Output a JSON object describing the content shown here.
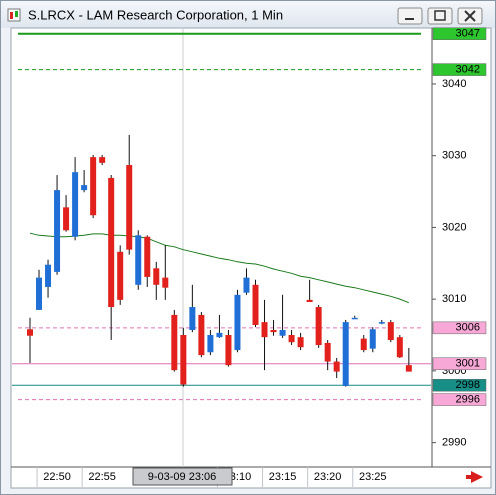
{
  "chart_data": {
    "type": "candlestick",
    "title": "S.LRCX - LAM Research Corporation, 1 Min",
    "categories": [
      null,
      null,
      null,
      "22:50",
      null,
      null,
      null,
      null,
      "22:55",
      null,
      null,
      null,
      null,
      null,
      null,
      null,
      null,
      null,
      null,
      null,
      null,
      null,
      null,
      "23:10",
      null,
      null,
      null,
      null,
      "23:15",
      null,
      null,
      null,
      null,
      "23:20",
      null,
      null,
      null,
      null,
      "23:25",
      null,
      null,
      null,
      null
    ],
    "open": [
      3005.8,
      3008.5,
      3011.7,
      3013.8,
      3022.8,
      3018.7,
      3025.2,
      3029.8,
      3029.8,
      3026.9,
      3016.6,
      3028.7,
      3012.0,
      3018.7,
      3014.3,
      3013.0,
      3007.8,
      3005.0,
      3005.7,
      3007.8,
      3002.6,
      3004.7,
      3005.0,
      3002.9,
      3010.9,
      3012.0,
      3006.8,
      3005.7,
      3004.9,
      3005.0,
      3004.7,
      3009.9,
      3008.9,
      3003.9,
      3001.3,
      2997.9,
      3007.4,
      3004.5,
      3003.1,
      3006.8,
      3006.8,
      3004.7,
      3000.8
    ],
    "high": [
      3007.4,
      3014.1,
      3015.5,
      3027.3,
      3024.5,
      3029.8,
      3028.0,
      3030.1,
      3030.1,
      3027.3,
      3017.5,
      3032.9,
      3019.6,
      3018.9,
      3015.2,
      3017.5,
      3008.5,
      3006.0,
      3012.0,
      3008.2,
      3005.7,
      3007.8,
      3005.7,
      3011.3,
      3014.3,
      3012.7,
      3009.9,
      3007.1,
      3010.6,
      3005.7,
      3005.3,
      3012.7,
      3009.2,
      3004.3,
      3001.8,
      3007.1,
      3007.7,
      3005.0,
      3006.1,
      3007.1,
      3007.1,
      3005.0,
      3003.2
    ],
    "low": [
      3001.1,
      3008.5,
      3010.2,
      3013.4,
      3019.4,
      3018.2,
      3024.9,
      3021.3,
      3028.7,
      3004.3,
      3009.2,
      3016.2,
      3011.3,
      3011.7,
      3009.9,
      3009.9,
      2999.9,
      2997.8,
      3005.4,
      3001.9,
      3002.2,
      3004.6,
      3000.6,
      3002.6,
      3010.6,
      3006.1,
      3000.1,
      3004.9,
      3004.6,
      3003.6,
      3002.9,
      3009.6,
      3003.2,
      3000.1,
      2999.0,
      2997.8,
      3007.4,
      3002.6,
      3002.6,
      3006.5,
      3004.0,
      3001.8,
      2999.9
    ],
    "close": [
      3004.9,
      3013.0,
      3014.8,
      3025.2,
      3019.6,
      3027.7,
      3025.9,
      3021.7,
      3029.0,
      3008.9,
      3009.9,
      3016.9,
      3018.9,
      3013.1,
      3012.0,
      3011.6,
      3000.1,
      2998.1,
      3008.9,
      3002.2,
      3005.0,
      3005.3,
      3000.8,
      3010.6,
      3013.0,
      3006.4,
      3004.7,
      3005.4,
      3005.7,
      3004.0,
      3003.3,
      3009.6,
      3003.6,
      3001.3,
      2999.9,
      3006.8,
      3007.4,
      3002.9,
      3005.8,
      3006.8,
      3004.3,
      3001.9,
      2999.9
    ],
    "up_color": "#1f6fd6",
    "down_color": "#e3211c",
    "moving_average": {
      "color": "#1a7a1a",
      "values": [
        3019.2,
        3018.9,
        3018.8,
        3018.7,
        3018.7,
        3018.8,
        3018.9,
        3019.1,
        3019.1,
        3018.9,
        3018.9,
        3018.8,
        3018.7,
        3018.5,
        3018.0,
        3017.5,
        3017.3,
        3016.9,
        3016.6,
        3016.3,
        3016.0,
        3015.7,
        3015.5,
        3015.2,
        3015.0,
        3014.9,
        3014.6,
        3014.2,
        3013.9,
        3013.6,
        3013.2,
        3013.0,
        3012.7,
        3012.4,
        3012.1,
        3011.8,
        3011.6,
        3011.3,
        3011.0,
        3010.7,
        3010.4,
        3010.0,
        3009.5
      ]
    },
    "levels": [
      {
        "value": 3047,
        "color": "#1a9a1a",
        "style": "solid",
        "label_bg": "#2ec62e",
        "label_color": "#000000"
      },
      {
        "value": 3042,
        "color": "#1a9a1a",
        "style": "dashed",
        "label_bg": "#2ec62e",
        "label_color": "#000000"
      },
      {
        "value": 3006,
        "color": "#e070b8",
        "style": "dashed",
        "label_bg": "#f7a8d6",
        "label_color": "#000000"
      },
      {
        "value": 3001,
        "color": "#e070b8",
        "style": "solid",
        "label_bg": "#f7a8d6",
        "label_color": "#000000"
      },
      {
        "value": 2998,
        "color": "#158a80",
        "style": "solid",
        "label_bg": "#178f86",
        "label_color": "#ffffff"
      },
      {
        "value": 2996,
        "color": "#e070b8",
        "style": "dashed",
        "label_bg": "#f7a8d6",
        "label_color": "#000000"
      }
    ],
    "cursor_label": "9-03-09 23:06",
    "ylim": [
      2986.6,
      3047.8
    ],
    "yticks": [
      2990,
      3000,
      3010,
      3020,
      3030,
      3040
    ]
  }
}
